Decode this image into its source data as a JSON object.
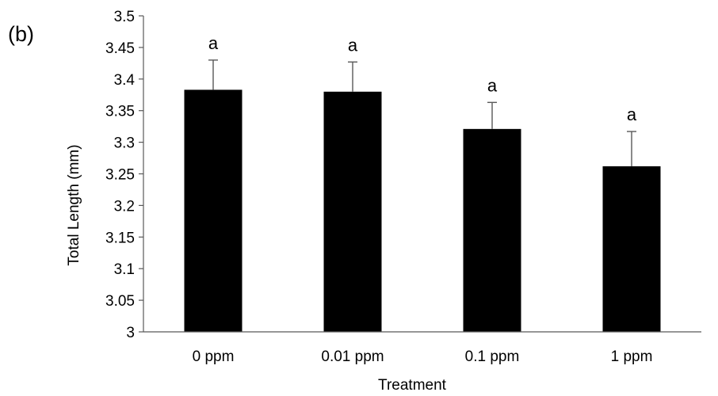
{
  "chart_data": {
    "type": "bar",
    "panel_label": "(b)",
    "title": "",
    "xlabel": "Treatment",
    "ylabel": "Total Length (mm)",
    "categories": [
      "0 ppm",
      "0.01 ppm",
      "0.1 ppm",
      "1 ppm"
    ],
    "series": [
      {
        "values": [
          3.383,
          3.38,
          3.321,
          3.262
        ],
        "error_plus": [
          0.047,
          0.047,
          0.042,
          0.055
        ],
        "significance_letters": [
          "a",
          "a",
          "a",
          "a"
        ]
      }
    ],
    "ylim": [
      3,
      3.5
    ],
    "yticks": [
      "3",
      "3.05",
      "3.1",
      "3.15",
      "3.2",
      "3.25",
      "3.3",
      "3.35",
      "3.4",
      "3.45",
      "3.5"
    ],
    "grid": false,
    "legend": "none",
    "bar_color": "#000000"
  }
}
